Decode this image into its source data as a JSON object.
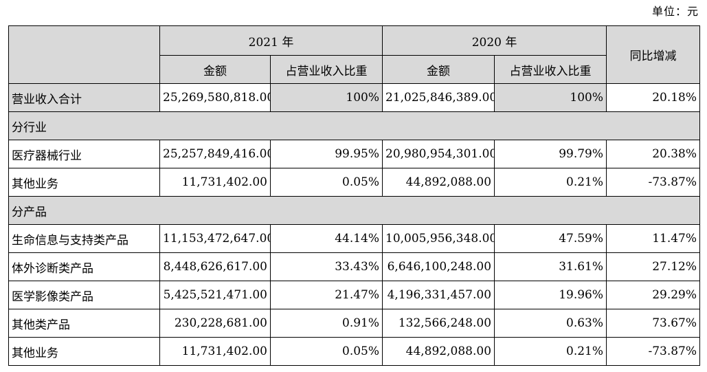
{
  "unit_label": "单位：元",
  "header": {
    "year_2021": "2021 年",
    "year_2020": "2020 年",
    "amount_2021": "金额",
    "ratio_2021": "占营业收入比重",
    "amount_2020": "金额",
    "ratio_2020": "占营业收入比重",
    "yoy": "同比增减"
  },
  "rows": [
    {
      "type": "data",
      "label": "营业收入合计",
      "amt2021": "25,269,580,818.00",
      "ratio2021": "100%",
      "amt2020": "21,025,846,389.00",
      "ratio2020": "100%",
      "yoy": "20.18%"
    },
    {
      "type": "section",
      "label": "分行业"
    },
    {
      "type": "data",
      "label": "医疗器械行业",
      "amt2021": "25,257,849,416.00",
      "ratio2021": "99.95%",
      "amt2020": "20,980,954,301.00",
      "ratio2020": "99.79%",
      "yoy": "20.38%"
    },
    {
      "type": "data",
      "label": "其他业务",
      "amt2021": "11,731,402.00",
      "ratio2021": "0.05%",
      "amt2020": "44,892,088.00",
      "ratio2020": "0.21%",
      "yoy": "-73.87%"
    },
    {
      "type": "section",
      "label": "分产品"
    },
    {
      "type": "data",
      "label": "生命信息与支持类产品",
      "amt2021": "11,153,472,647.00",
      "ratio2021": "44.14%",
      "amt2020": "10,005,956,348.00",
      "ratio2020": "47.59%",
      "yoy": "11.47%"
    },
    {
      "type": "data",
      "label": "体外诊断类产品",
      "amt2021": "8,448,626,617.00",
      "ratio2021": "33.43%",
      "amt2020": "6,646,100,248.00",
      "ratio2020": "31.61%",
      "yoy": "27.12%"
    },
    {
      "type": "data",
      "label": "医学影像类产品",
      "amt2021": "5,425,521,471.00",
      "ratio2021": "21.47%",
      "amt2020": "4,196,331,457.00",
      "ratio2020": "19.96%",
      "yoy": "29.29%"
    },
    {
      "type": "data",
      "label": "其他类产品",
      "amt2021": "230,228,681.00",
      "ratio2021": "0.91%",
      "amt2020": "132,566,248.00",
      "ratio2020": "0.63%",
      "yoy": "73.67%"
    },
    {
      "type": "data",
      "label": "其他业务",
      "amt2021": "11,731,402.00",
      "ratio2021": "0.05%",
      "amt2020": "44,892,088.00",
      "ratio2020": "0.21%",
      "yoy": "-73.87%"
    }
  ]
}
